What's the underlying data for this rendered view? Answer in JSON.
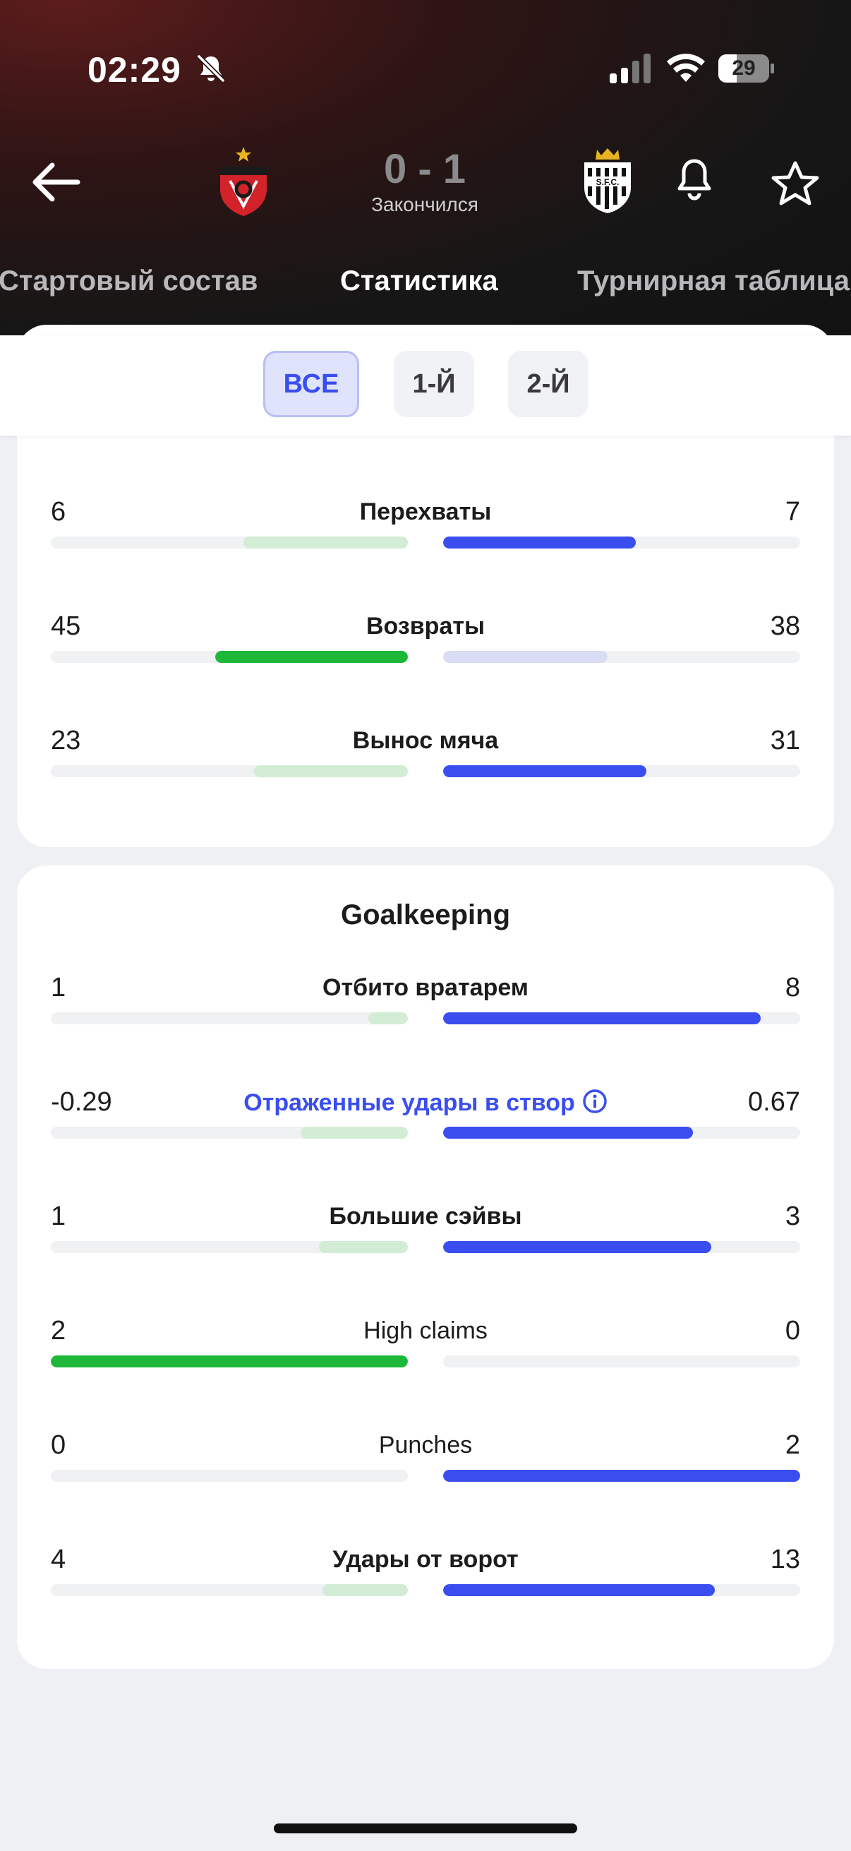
{
  "status_bar": {
    "time": "02:29",
    "battery": "29"
  },
  "match": {
    "score": "0 - 1",
    "status": "Закончился"
  },
  "tabs": [
    "Стартовый состав",
    "Статистика",
    "Турнирная таблица"
  ],
  "periods": [
    "ВСЕ",
    "1-Й",
    "2-Й"
  ],
  "defending_rows": [
    {
      "label": "Перехваты",
      "home": "6",
      "away": "7",
      "home_share": 0.46,
      "away_share": 0.54,
      "home_style": "green-light",
      "away_style": "blue"
    },
    {
      "label": "Возвраты",
      "home": "45",
      "away": "38",
      "home_share": 0.54,
      "away_share": 0.46,
      "home_style": "green",
      "away_style": "blue-light"
    },
    {
      "label": "Вынос мяча",
      "home": "23",
      "away": "31",
      "home_share": 0.43,
      "away_share": 0.57,
      "home_style": "green-light",
      "away_style": "blue"
    }
  ],
  "goalkeeping": {
    "title": "Goalkeeping",
    "rows": [
      {
        "label": "Отбито вратарем",
        "home": "1",
        "away": "8",
        "home_share": 0.11,
        "away_share": 0.89,
        "home_style": "green-light",
        "away_style": "blue"
      },
      {
        "label": "Отраженные удары в створ",
        "home": "-0.29",
        "away": "0.67",
        "home_share": 0.3,
        "away_share": 0.7,
        "home_style": "green-light",
        "away_style": "blue",
        "info": true
      },
      {
        "label": "Большие сэйвы",
        "home": "1",
        "away": "3",
        "home_share": 0.25,
        "away_share": 0.75,
        "home_style": "green-light",
        "away_style": "blue"
      },
      {
        "label": "High claims",
        "home": "2",
        "away": "0",
        "home_share": 1.0,
        "away_share": 0.0,
        "home_style": "green",
        "away_style": "blue"
      },
      {
        "label": "Punches",
        "home": "0",
        "away": "2",
        "home_share": 0.0,
        "away_share": 1.0,
        "home_style": "green-light",
        "away_style": "blue"
      },
      {
        "label": "Удары от ворот",
        "home": "4",
        "away": "13",
        "home_share": 0.24,
        "away_share": 0.76,
        "home_style": "green-light",
        "away_style": "blue"
      }
    ]
  },
  "colors": {
    "accent": "#3a4ef0",
    "home": "#1db839",
    "home_light": "#d2ecd6",
    "away": "#3a4ef0",
    "away_light": "#d8dcf5"
  },
  "icons": [
    "bell-off-icon",
    "signal-icon",
    "wifi-icon",
    "battery-icon",
    "back-arrow-icon",
    "bell-icon",
    "star-icon",
    "info-icon"
  ]
}
